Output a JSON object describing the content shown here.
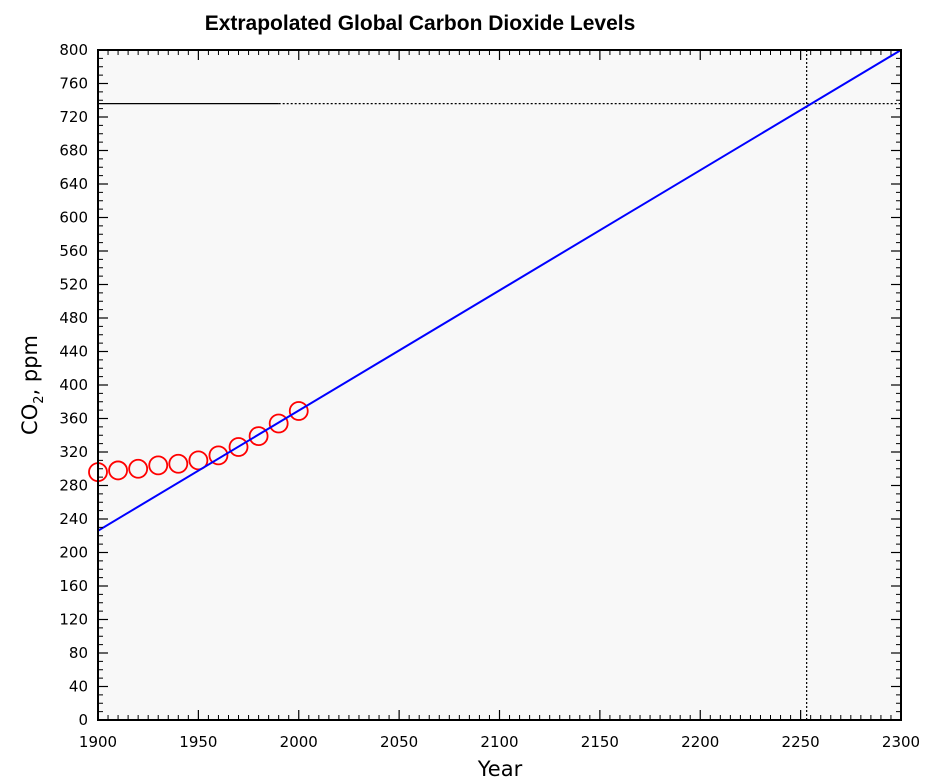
{
  "chart_data": {
    "type": "scatter",
    "title": "Extrapolated Global Carbon Dioxide Levels",
    "xlabel": "Year",
    "ylabel": {
      "main": "CO",
      "sub": "2",
      "suffix": ", ppm"
    },
    "xlim": [
      1900,
      2300
    ],
    "ylim": [
      0,
      800
    ],
    "x_ticks": [
      1900,
      1950,
      2000,
      2050,
      2100,
      2150,
      2200,
      2250,
      2300
    ],
    "y_ticks": [
      0,
      40,
      80,
      120,
      160,
      200,
      240,
      280,
      320,
      360,
      400,
      440,
      480,
      520,
      560,
      600,
      640,
      680,
      720,
      760,
      800
    ],
    "series": [
      {
        "kind": "markers",
        "marker": "open-circle",
        "color": "#ff0000",
        "x": [
          1900,
          1910,
          1920,
          1930,
          1940,
          1950,
          1960,
          1970,
          1980,
          1990,
          2000
        ],
        "y": [
          296,
          298,
          300,
          304,
          306,
          310,
          316,
          326,
          339,
          354,
          369
        ]
      },
      {
        "kind": "line",
        "color": "#0000ff",
        "x": [
          1900,
          2300
        ],
        "y": [
          226,
          800
        ]
      }
    ],
    "reference_lines": [
      {
        "orientation": "horizontal",
        "value": 736,
        "from": 1900,
        "to": 1990,
        "style": "solid",
        "color": "#000000"
      },
      {
        "orientation": "horizontal",
        "value": 736,
        "from": 1990,
        "to": 2300,
        "style": "dotted",
        "color": "#000000"
      },
      {
        "orientation": "vertical",
        "value": 2253,
        "from": 0,
        "to": 800,
        "style": "dotted",
        "color": "#000000"
      }
    ],
    "background": "#f8f8f8",
    "grid": false,
    "legend": "none"
  }
}
